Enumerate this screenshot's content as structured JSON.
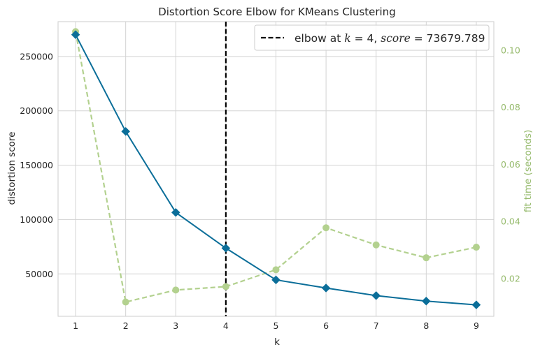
{
  "chart_data": {
    "type": "line",
    "title": "Distortion Score Elbow for KMeans Clustering",
    "xlabel": "k",
    "ylabel": "distortion score",
    "y2label": "fit time (seconds)",
    "x": [
      1,
      2,
      3,
      4,
      5,
      6,
      7,
      8,
      9
    ],
    "xlim": [
      0.65,
      9.35
    ],
    "ylim": [
      11000,
      282000
    ],
    "y2lim": [
      0.0068,
      0.11
    ],
    "xticks": [
      "1",
      "2",
      "3",
      "4",
      "5",
      "6",
      "7",
      "8",
      "9"
    ],
    "yticks": [
      {
        "value": 50000,
        "label": "50000"
      },
      {
        "value": 100000,
        "label": "100000"
      },
      {
        "value": 150000,
        "label": "150000"
      },
      {
        "value": 200000,
        "label": "200000"
      },
      {
        "value": 250000,
        "label": "250000"
      }
    ],
    "y2ticks": [
      {
        "value": 0.02,
        "label": "0.02"
      },
      {
        "value": 0.04,
        "label": "0.04"
      },
      {
        "value": 0.06,
        "label": "0.06"
      },
      {
        "value": 0.08,
        "label": "0.08"
      },
      {
        "value": 0.1,
        "label": "0.10"
      }
    ],
    "series": [
      {
        "axis": "left",
        "color": "#0b6e99",
        "style": "solid",
        "marker": "diamond",
        "values": [
          270000,
          181000,
          106500,
          73679.789,
          44500,
          37000,
          30000,
          25000,
          21500
        ]
      },
      {
        "axis": "right",
        "color": "#b3d18f",
        "style": "dashed",
        "marker": "circle",
        "values": [
          0.1065,
          0.0118,
          0.016,
          0.0172,
          0.0231,
          0.0378,
          0.0318,
          0.0273,
          0.031
        ]
      }
    ],
    "elbow": {
      "k": 4,
      "score": "73679.789"
    },
    "legend": {
      "placement": "top-right",
      "prefix": "elbow at ",
      "k_symbol": "k",
      "equals_k": " = 4, ",
      "score_symbol": "score",
      "equals_score": " = 73679.789"
    },
    "grid": true,
    "colors": {
      "distortion": "#0b6e99",
      "fit_time": "#b3d18f",
      "fit_time_text": "#97bb6e",
      "grid": "#d3d3d3",
      "elbow_line": "#000000"
    }
  }
}
